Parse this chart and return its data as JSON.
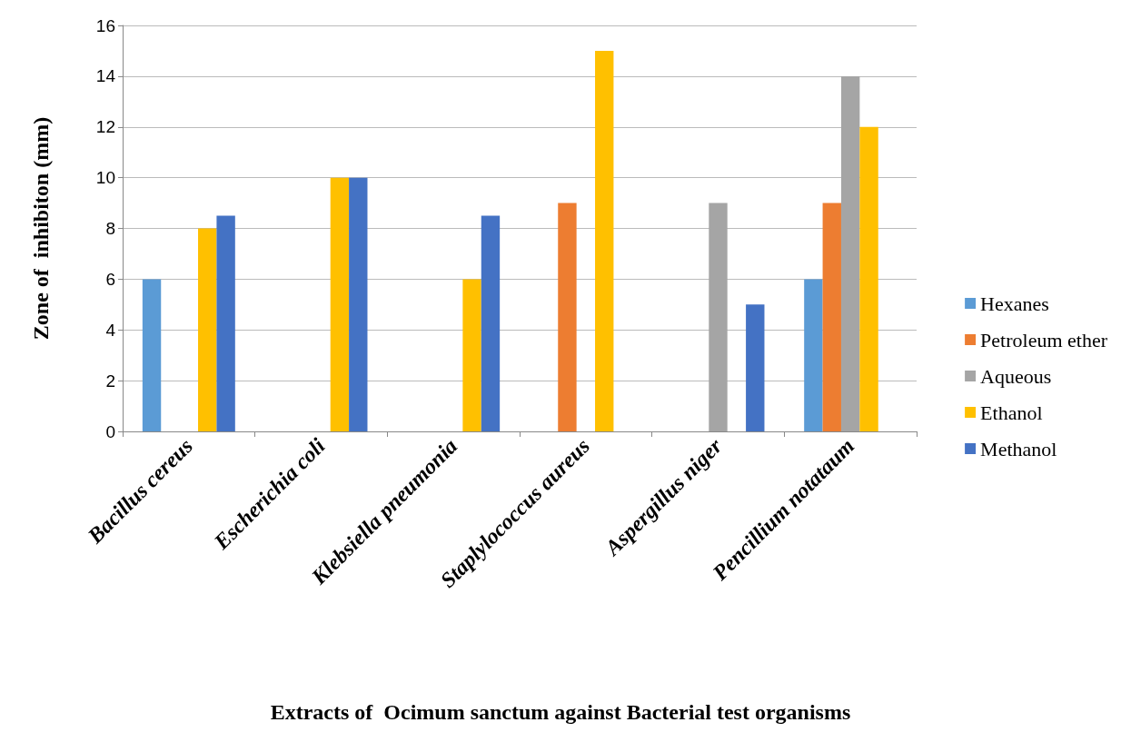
{
  "chart_data": {
    "type": "bar",
    "annotations": [
      "Extracts of  Ocimum sanctum against Bacterial test organisms"
    ],
    "ylabel": "Zone of  inhibiton (mm)",
    "categories": [
      "Bacillus cereus",
      "Escherichia coli",
      "Klebsiella pneumonia",
      "Staplylococcus aureus",
      "Aspergillus niger",
      "Pencillium notataum"
    ],
    "series": [
      {
        "name": "Hexanes",
        "color": "#5b9bd5",
        "values": [
          6,
          null,
          null,
          null,
          null,
          6
        ]
      },
      {
        "name": "Petroleum ether",
        "color": "#ed7d31",
        "values": [
          null,
          null,
          null,
          9,
          null,
          9
        ]
      },
      {
        "name": "Aqueous",
        "color": "#a5a5a5",
        "values": [
          null,
          null,
          null,
          null,
          9,
          14
        ]
      },
      {
        "name": "Ethanol",
        "color": "#ffc000",
        "values": [
          8,
          10,
          6,
          15,
          null,
          12
        ]
      },
      {
        "name": "Methanol",
        "color": "#4472c4",
        "values": [
          8.5,
          10,
          8.5,
          null,
          5,
          null
        ]
      }
    ],
    "ylim": [
      0,
      16
    ],
    "yticks": [
      0,
      2,
      4,
      6,
      8,
      10,
      12,
      14,
      16
    ],
    "grid": "y",
    "legend": "right"
  }
}
